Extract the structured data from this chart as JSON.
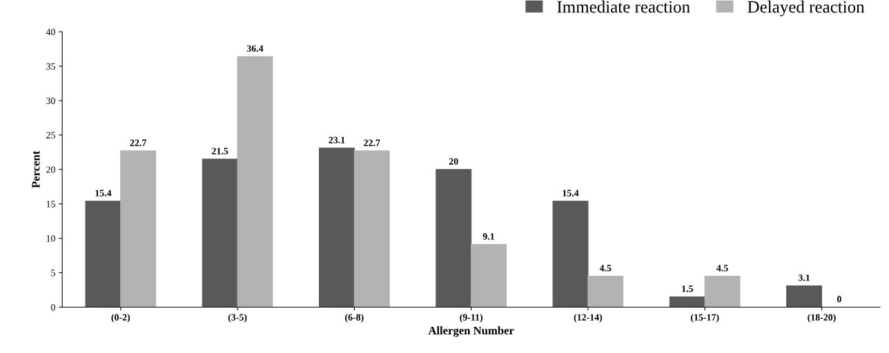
{
  "chart_data": {
    "type": "bar",
    "xlabel": "Allergen Number",
    "ylabel": "Percent",
    "categories": [
      "(0-2)",
      "(3-5)",
      "(6-8)",
      "(9-11)",
      "(12-14)",
      "(15-17)",
      "(18-20)"
    ],
    "series": [
      {
        "name": "Immediate reaction",
        "color": "#595959",
        "values": [
          15.4,
          21.5,
          23.1,
          20,
          15.4,
          1.5,
          3.1
        ]
      },
      {
        "name": "Delayed reaction",
        "color": "#b3b3b3",
        "values": [
          22.7,
          36.4,
          22.7,
          9.1,
          4.5,
          4.5,
          0
        ]
      }
    ],
    "ylim": [
      0,
      40
    ],
    "yticks": [
      0,
      5,
      10,
      15,
      20,
      25,
      30,
      35,
      40
    ],
    "data_labels": true,
    "grid": false,
    "legend": "top right"
  }
}
